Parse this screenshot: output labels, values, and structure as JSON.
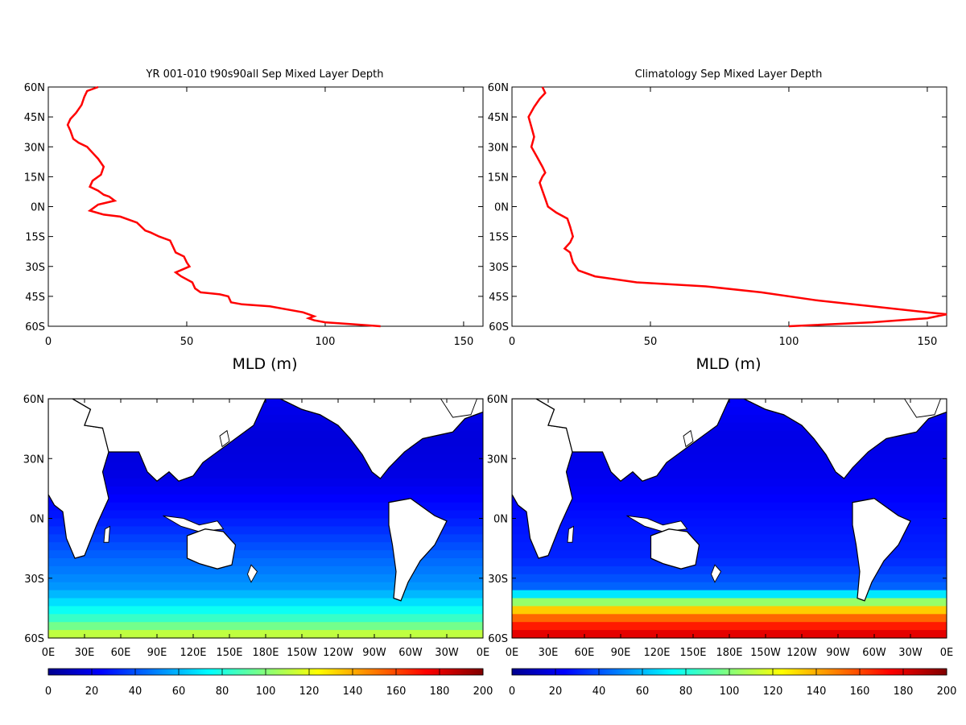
{
  "chart_data": [
    {
      "type": "line",
      "title": "YR 001-010 t90s90all Sep Mixed Layer Depth",
      "xlabel": "MLD (m)",
      "ylabel": "",
      "xlim": [
        0,
        157
      ],
      "ylim": [
        -60,
        60
      ],
      "xticks": [
        "0",
        "50",
        "100",
        "150"
      ],
      "xtick_values": [
        0,
        50,
        100,
        150
      ],
      "yticks": [
        "60N",
        "45N",
        "30N",
        "15N",
        "0N",
        "15S",
        "30S",
        "45S",
        "60S"
      ],
      "ytick_values": [
        60,
        45,
        30,
        15,
        0,
        -15,
        -30,
        -45,
        -60
      ],
      "series": [
        {
          "color": "#ff0000",
          "x": [
            18,
            14,
            13,
            12,
            10,
            8,
            7,
            8,
            9,
            11,
            14,
            16,
            18,
            20,
            19,
            16,
            15,
            18,
            20,
            22,
            24,
            18,
            15,
            20,
            26,
            32,
            35,
            37,
            40,
            44,
            45,
            46,
            49,
            50,
            51,
            46,
            48,
            52,
            53,
            55,
            62,
            65,
            66,
            70,
            80,
            92,
            96,
            94,
            96,
            100,
            110,
            120
          ],
          "y": [
            60,
            58,
            55,
            51,
            47,
            44,
            41,
            38,
            34,
            32,
            30,
            27,
            24,
            20,
            16,
            13,
            10,
            8,
            6,
            5,
            3,
            1,
            -2,
            -4,
            -5,
            -8,
            -12,
            -13,
            -15,
            -17,
            -20,
            -23,
            -25,
            -28,
            -30,
            -33,
            -35,
            -38,
            -41,
            -43,
            -44,
            -45,
            -48,
            -49,
            -50,
            -53,
            -55,
            -56,
            -57,
            -58,
            -59,
            -60
          ]
        }
      ]
    },
    {
      "type": "line",
      "title": "Climatology Sep Mixed Layer Depth",
      "xlabel": "MLD (m)",
      "ylabel": "",
      "xlim": [
        0,
        157
      ],
      "ylim": [
        -60,
        60
      ],
      "xticks": [
        "0",
        "50",
        "100",
        "150"
      ],
      "xtick_values": [
        0,
        50,
        100,
        150
      ],
      "yticks": [
        "60N",
        "45N",
        "30N",
        "15N",
        "0N",
        "15S",
        "30S",
        "45S",
        "60S"
      ],
      "ytick_values": [
        60,
        45,
        30,
        15,
        0,
        -15,
        -30,
        -45,
        -60
      ],
      "series": [
        {
          "color": "#ff0000",
          "x": [
            11,
            12,
            10,
            8,
            6,
            7,
            8,
            7,
            9,
            11,
            12,
            11,
            10,
            11,
            12,
            13,
            16,
            20,
            21,
            22,
            21,
            19,
            21,
            22,
            24,
            30,
            45,
            70,
            90,
            110,
            130,
            150,
            157,
            150,
            130,
            100
          ],
          "y": [
            60,
            57,
            54,
            50,
            45,
            40,
            35,
            30,
            25,
            20,
            17,
            15,
            12,
            8,
            4,
            0,
            -3,
            -6,
            -10,
            -15,
            -18,
            -21,
            -23,
            -28,
            -32,
            -35,
            -38,
            -40,
            -43,
            -47,
            -50,
            -53,
            -54,
            -56,
            -58,
            -60
          ]
        }
      ]
    },
    {
      "type": "heatmap",
      "title": "",
      "xticks": [
        "0E",
        "30E",
        "60E",
        "90E",
        "120E",
        "150E",
        "180E",
        "150W",
        "120W",
        "90W",
        "60W",
        "30W",
        "0E"
      ],
      "yticks": [
        "60N",
        "30N",
        "0N",
        "30S",
        "60S"
      ],
      "colorbar": {
        "ticks": [
          "0",
          "20",
          "40",
          "60",
          "80",
          "100",
          "120",
          "140",
          "160",
          "180",
          "200"
        ],
        "min": 0,
        "max": 200
      },
      "zones": [
        {
          "lat": 60,
          "value": 22
        },
        {
          "lat": 40,
          "value": 18
        },
        {
          "lat": 20,
          "value": 20
        },
        {
          "lat": 0,
          "value": 30
        },
        {
          "lat": -20,
          "value": 45
        },
        {
          "lat": -35,
          "value": 55
        },
        {
          "lat": -45,
          "value": 75
        },
        {
          "lat": -52,
          "value": 90
        },
        {
          "lat": -60,
          "value": 120
        }
      ]
    },
    {
      "type": "heatmap",
      "title": "",
      "xticks": [
        "0E",
        "30E",
        "60E",
        "90E",
        "120E",
        "150E",
        "180E",
        "150W",
        "120W",
        "90W",
        "60W",
        "30W",
        "0E"
      ],
      "yticks": [
        "60N",
        "30N",
        "0N",
        "30S",
        "60S"
      ],
      "colorbar": {
        "ticks": [
          "0",
          "20",
          "40",
          "60",
          "80",
          "100",
          "120",
          "140",
          "160",
          "180",
          "200"
        ],
        "min": 0,
        "max": 200
      },
      "zones": [
        {
          "lat": 60,
          "value": 25
        },
        {
          "lat": 40,
          "value": 20
        },
        {
          "lat": 20,
          "value": 22
        },
        {
          "lat": 0,
          "value": 28
        },
        {
          "lat": -20,
          "value": 32
        },
        {
          "lat": -35,
          "value": 45
        },
        {
          "lat": -45,
          "value": 130
        },
        {
          "lat": -52,
          "value": 165
        },
        {
          "lat": -60,
          "value": 185
        }
      ]
    }
  ]
}
